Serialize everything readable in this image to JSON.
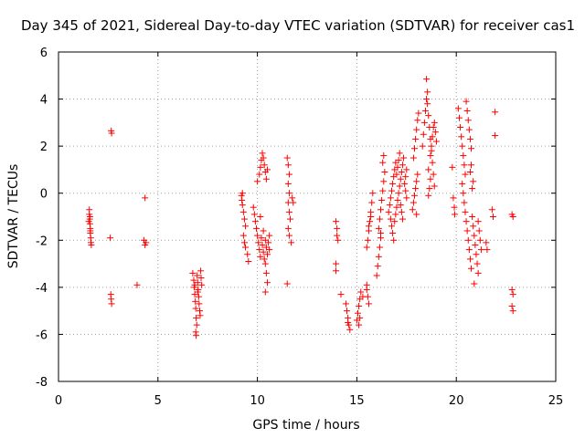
{
  "chart_data": {
    "type": "scatter",
    "title": "Day 345 of 2021, Sidereal Day-to-day VTEC variation (SDTVAR) for receiver cas1",
    "xlabel": "GPS time / hours",
    "ylabel": "SDTVAR / TECUs",
    "xlim": [
      0,
      25
    ],
    "ylim": [
      -8,
      6
    ],
    "xticks": [
      "0",
      "5",
      "10",
      "15",
      "20",
      "25"
    ],
    "yticks": [
      "-8",
      "-6",
      "-4",
      "-2",
      "0",
      "2",
      "4",
      "6"
    ],
    "grid": true,
    "marker": "+",
    "color": "#ff0000",
    "series": [
      {
        "name": "cas1",
        "points": [
          [
            1.55,
            -0.7
          ],
          [
            1.55,
            -0.9
          ],
          [
            1.57,
            -1.1
          ],
          [
            1.58,
            -1.3
          ],
          [
            1.6,
            -1.5
          ],
          [
            1.6,
            -1.7
          ],
          [
            1.62,
            -1.9
          ],
          [
            1.63,
            -2.1
          ],
          [
            1.65,
            -2.2
          ],
          [
            1.52,
            -1.2
          ],
          [
            1.58,
            -1.0
          ],
          [
            1.6,
            -1.6
          ],
          [
            2.65,
            2.65
          ],
          [
            2.67,
            2.55
          ],
          [
            2.6,
            -1.9
          ],
          [
            2.63,
            -4.3
          ],
          [
            2.65,
            -4.5
          ],
          [
            2.67,
            -4.7
          ],
          [
            3.95,
            -3.9
          ],
          [
            4.35,
            -0.2
          ],
          [
            4.3,
            -2.0
          ],
          [
            4.35,
            -2.2
          ],
          [
            4.4,
            -2.1
          ],
          [
            6.75,
            -3.4
          ],
          [
            6.8,
            -3.7
          ],
          [
            6.82,
            -4.0
          ],
          [
            6.85,
            -4.3
          ],
          [
            6.88,
            -4.6
          ],
          [
            6.9,
            -4.9
          ],
          [
            6.92,
            -5.3
          ],
          [
            6.95,
            -5.6
          ],
          [
            6.9,
            -5.9
          ],
          [
            6.92,
            -6.05
          ],
          [
            6.97,
            -3.5
          ],
          [
            7.0,
            -3.8
          ],
          [
            7.02,
            -4.1
          ],
          [
            7.05,
            -4.4
          ],
          [
            7.07,
            -4.7
          ],
          [
            7.1,
            -5.0
          ],
          [
            7.12,
            -5.2
          ],
          [
            7.15,
            -3.3
          ],
          [
            7.17,
            -3.6
          ],
          [
            7.2,
            -3.9
          ],
          [
            7.0,
            -4.2
          ],
          [
            6.85,
            -3.9
          ],
          [
            9.2,
            -0.1
          ],
          [
            9.22,
            -0.3
          ],
          [
            9.25,
            -0.5
          ],
          [
            9.3,
            -0.8
          ],
          [
            9.35,
            -1.1
          ],
          [
            9.4,
            -1.4
          ],
          [
            9.3,
            -1.8
          ],
          [
            9.35,
            -2.1
          ],
          [
            9.4,
            -2.3
          ],
          [
            9.5,
            -2.6
          ],
          [
            9.55,
            -2.9
          ],
          [
            9.25,
            -0.0
          ],
          [
            9.8,
            -0.6
          ],
          [
            9.85,
            -0.9
          ],
          [
            9.9,
            -1.2
          ],
          [
            9.95,
            -1.5
          ],
          [
            10.0,
            -1.8
          ],
          [
            10.05,
            -2.1
          ],
          [
            10.1,
            -2.4
          ],
          [
            10.15,
            -2.7
          ],
          [
            10.0,
            0.5
          ],
          [
            10.1,
            0.8
          ],
          [
            10.15,
            1.1
          ],
          [
            10.2,
            1.4
          ],
          [
            10.25,
            1.7
          ],
          [
            10.3,
            1.5
          ],
          [
            10.35,
            1.2
          ],
          [
            10.4,
            0.9
          ],
          [
            10.45,
            0.6
          ],
          [
            10.5,
            1.0
          ],
          [
            10.2,
            -1.9
          ],
          [
            10.25,
            -2.2
          ],
          [
            10.3,
            -2.5
          ],
          [
            10.35,
            -2.8
          ],
          [
            10.4,
            -2.0
          ],
          [
            10.45,
            -2.3
          ],
          [
            10.5,
            -2.6
          ],
          [
            10.4,
            -3.0
          ],
          [
            10.45,
            -3.4
          ],
          [
            10.5,
            -3.8
          ],
          [
            10.4,
            -4.2
          ],
          [
            10.55,
            -2.1
          ],
          [
            10.6,
            -1.8
          ],
          [
            10.6,
            -2.4
          ],
          [
            10.15,
            -1.0
          ],
          [
            10.3,
            -1.6
          ],
          [
            11.5,
            1.5
          ],
          [
            11.55,
            1.2
          ],
          [
            11.6,
            0.8
          ],
          [
            11.55,
            0.4
          ],
          [
            11.6,
            0.0
          ],
          [
            11.55,
            -0.4
          ],
          [
            11.6,
            -0.8
          ],
          [
            11.65,
            -1.1
          ],
          [
            11.55,
            -1.5
          ],
          [
            11.6,
            -1.8
          ],
          [
            11.7,
            -2.1
          ],
          [
            11.75,
            -0.2
          ],
          [
            11.8,
            -0.4
          ],
          [
            11.5,
            -3.85
          ],
          [
            13.95,
            -1.2
          ],
          [
            14.0,
            -1.5
          ],
          [
            14.0,
            -1.8
          ],
          [
            14.05,
            -2.0
          ],
          [
            13.95,
            -3.0
          ],
          [
            13.95,
            -3.3
          ],
          [
            14.2,
            -4.3
          ],
          [
            14.45,
            -4.7
          ],
          [
            14.5,
            -5.0
          ],
          [
            14.55,
            -5.3
          ],
          [
            14.6,
            -5.6
          ],
          [
            14.65,
            -5.8
          ],
          [
            14.55,
            -5.5
          ],
          [
            15.0,
            -5.4
          ],
          [
            15.05,
            -5.1
          ],
          [
            15.1,
            -4.8
          ],
          [
            15.15,
            -4.5
          ],
          [
            15.2,
            -4.2
          ],
          [
            15.1,
            -5.6
          ],
          [
            15.15,
            -5.3
          ],
          [
            15.3,
            -4.4
          ],
          [
            15.5,
            -4.1
          ],
          [
            15.55,
            -4.4
          ],
          [
            15.6,
            -4.7
          ],
          [
            15.5,
            -3.9
          ],
          [
            15.5,
            -2.3
          ],
          [
            15.55,
            -2.0
          ],
          [
            15.6,
            -1.6
          ],
          [
            15.65,
            -1.2
          ],
          [
            15.7,
            -0.8
          ],
          [
            15.75,
            -0.4
          ],
          [
            15.8,
            0.0
          ],
          [
            15.6,
            -1.4
          ],
          [
            15.7,
            -1.0
          ],
          [
            16.0,
            -3.5
          ],
          [
            16.05,
            -3.1
          ],
          [
            16.1,
            -2.7
          ],
          [
            16.15,
            -2.3
          ],
          [
            16.2,
            -1.9
          ],
          [
            16.1,
            -1.5
          ],
          [
            16.15,
            -1.1
          ],
          [
            16.2,
            -0.7
          ],
          [
            16.25,
            -0.3
          ],
          [
            16.3,
            0.1
          ],
          [
            16.35,
            0.5
          ],
          [
            16.4,
            0.9
          ],
          [
            16.3,
            1.3
          ],
          [
            16.35,
            1.6
          ],
          [
            16.2,
            -1.7
          ],
          [
            16.6,
            -0.8
          ],
          [
            16.65,
            -0.5
          ],
          [
            16.7,
            -0.2
          ],
          [
            16.75,
            0.1
          ],
          [
            16.8,
            0.4
          ],
          [
            16.85,
            0.7
          ],
          [
            16.9,
            1.0
          ],
          [
            16.95,
            1.3
          ],
          [
            16.7,
            -1.1
          ],
          [
            16.75,
            -1.4
          ],
          [
            16.8,
            -1.7
          ],
          [
            16.85,
            -2.0
          ],
          [
            16.9,
            -1.2
          ],
          [
            16.95,
            -0.9
          ],
          [
            17.0,
            -0.6
          ],
          [
            17.05,
            -0.3
          ],
          [
            17.1,
            0.0
          ],
          [
            17.15,
            0.3
          ],
          [
            17.2,
            0.6
          ],
          [
            17.25,
            0.9
          ],
          [
            17.3,
            1.2
          ],
          [
            17.35,
            1.5
          ],
          [
            17.2,
            -0.5
          ],
          [
            17.25,
            -0.8
          ],
          [
            17.3,
            -1.1
          ],
          [
            17.0,
            0.8
          ],
          [
            17.05,
            1.1
          ],
          [
            17.1,
            1.4
          ],
          [
            17.15,
            1.7
          ],
          [
            17.4,
            0.4
          ],
          [
            17.45,
            0.1
          ],
          [
            17.5,
            -0.2
          ],
          [
            17.45,
            0.7
          ],
          [
            17.5,
            1.0
          ],
          [
            17.8,
            -0.7
          ],
          [
            17.85,
            -0.4
          ],
          [
            17.9,
            -0.1
          ],
          [
            17.95,
            0.2
          ],
          [
            18.0,
            0.5
          ],
          [
            18.05,
            0.8
          ],
          [
            17.85,
            1.5
          ],
          [
            17.9,
            1.9
          ],
          [
            17.95,
            2.3
          ],
          [
            18.0,
            2.7
          ],
          [
            18.05,
            3.1
          ],
          [
            18.1,
            3.4
          ],
          [
            18.0,
            -0.9
          ],
          [
            18.3,
            2.0
          ],
          [
            18.35,
            2.5
          ],
          [
            18.4,
            3.0
          ],
          [
            18.45,
            3.5
          ],
          [
            18.5,
            4.0
          ],
          [
            18.55,
            4.3
          ],
          [
            18.5,
            4.85
          ],
          [
            18.55,
            3.8
          ],
          [
            18.6,
            3.3
          ],
          [
            18.65,
            2.8
          ],
          [
            18.7,
            2.3
          ],
          [
            18.75,
            1.8
          ],
          [
            18.8,
            1.3
          ],
          [
            18.85,
            0.8
          ],
          [
            18.9,
            0.3
          ],
          [
            18.6,
            -0.1
          ],
          [
            18.65,
            0.2
          ],
          [
            18.7,
            0.6
          ],
          [
            18.75,
            2.0
          ],
          [
            18.8,
            2.4
          ],
          [
            18.85,
            2.8
          ],
          [
            18.9,
            3.0
          ],
          [
            18.95,
            2.6
          ],
          [
            19.0,
            2.2
          ],
          [
            18.7,
            1.6
          ],
          [
            18.6,
            1.0
          ],
          [
            19.8,
            1.1
          ],
          [
            19.85,
            -0.2
          ],
          [
            19.9,
            -0.6
          ],
          [
            19.92,
            -0.9
          ],
          [
            20.1,
            3.6
          ],
          [
            20.15,
            3.2
          ],
          [
            20.2,
            2.8
          ],
          [
            20.25,
            2.4
          ],
          [
            20.3,
            2.0
          ],
          [
            20.35,
            1.6
          ],
          [
            20.4,
            1.2
          ],
          [
            20.45,
            0.8
          ],
          [
            20.5,
            3.9
          ],
          [
            20.55,
            3.5
          ],
          [
            20.6,
            3.1
          ],
          [
            20.65,
            2.7
          ],
          [
            20.7,
            2.3
          ],
          [
            20.75,
            1.9
          ],
          [
            20.3,
            0.4
          ],
          [
            20.35,
            0.0
          ],
          [
            20.4,
            -0.4
          ],
          [
            20.45,
            -0.8
          ],
          [
            20.5,
            -1.2
          ],
          [
            20.55,
            -1.6
          ],
          [
            20.6,
            -2.0
          ],
          [
            20.65,
            -2.4
          ],
          [
            20.7,
            -2.8
          ],
          [
            20.75,
            -3.2
          ],
          [
            20.8,
            -1.0
          ],
          [
            20.85,
            -1.4
          ],
          [
            20.9,
            -1.8
          ],
          [
            20.95,
            -2.2
          ],
          [
            21.0,
            -2.6
          ],
          [
            21.05,
            -3.0
          ],
          [
            21.1,
            -1.2
          ],
          [
            21.15,
            -1.6
          ],
          [
            21.2,
            -2.0
          ],
          [
            21.25,
            -2.4
          ],
          [
            21.1,
            -3.4
          ],
          [
            20.9,
            -3.85
          ],
          [
            20.8,
            0.2
          ],
          [
            20.85,
            0.5
          ],
          [
            20.75,
            1.2
          ],
          [
            20.7,
            0.9
          ],
          [
            21.5,
            -2.1
          ],
          [
            21.55,
            -2.4
          ],
          [
            21.8,
            -0.7
          ],
          [
            21.85,
            -1.0
          ],
          [
            21.95,
            3.45
          ],
          [
            21.95,
            2.45
          ],
          [
            22.8,
            -0.9
          ],
          [
            22.85,
            -1.0
          ],
          [
            22.8,
            -4.1
          ],
          [
            22.85,
            -4.3
          ],
          [
            22.8,
            -4.8
          ],
          [
            22.85,
            -5.0
          ]
        ]
      }
    ]
  }
}
